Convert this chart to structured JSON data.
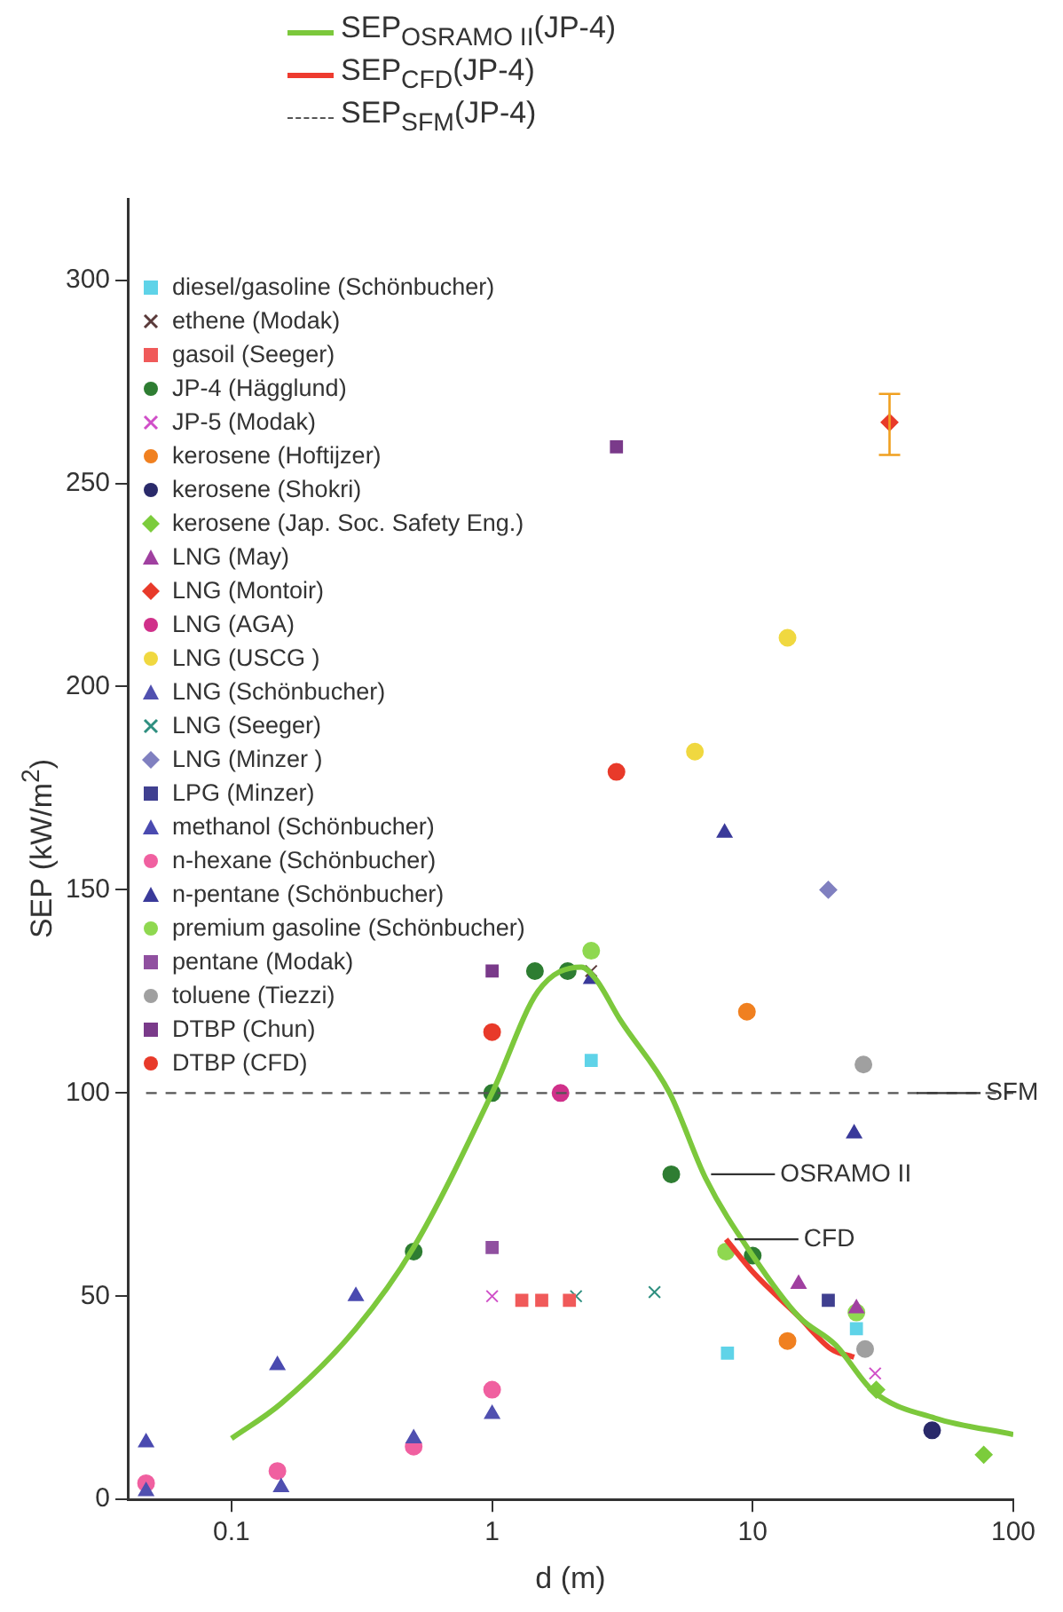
{
  "chart_data": {
    "type": "scatter",
    "xlabel": "d (m)",
    "ylabel": "SEP (kW/m$^{2}$)",
    "log": "x",
    "xlim": [
      0.04,
      100
    ],
    "xticks": [
      0.1,
      1,
      10,
      100
    ],
    "ylim": [
      0,
      320
    ],
    "yticks": [
      0,
      50,
      100,
      150,
      200,
      250,
      300
    ],
    "grid": false,
    "legend": "top left",
    "annotations": [
      {
        "text": "OSRAMO II",
        "x": 6.5,
        "y": 80
      },
      {
        "text": "CFD",
        "x": 8,
        "y": 64
      },
      {
        "text": "SFM",
        "x": 40,
        "y": 100
      }
    ],
    "series": [
      {
        "name": "SEP$_{OSRAMO II}$(JP-4)",
        "type": "line",
        "line_style": "solid",
        "color": "#7cc83c",
        "x": [
          0.1,
          0.155,
          0.3,
          0.5,
          1,
          1.5,
          2.2,
          2.5,
          3.1,
          4.8,
          6.6,
          10,
          15,
          20.8,
          29,
          50,
          100
        ],
        "values": [
          15,
          23.6,
          42,
          62,
          100,
          125,
          131,
          128,
          118,
          100,
          79,
          60,
          45,
          38,
          26.6,
          20,
          16
        ]
      },
      {
        "name": "SEP$_{CFD}$(JP-4)",
        "type": "line",
        "line_style": "solid",
        "color": "#ee3b2f",
        "x": [
          7.9,
          10,
          15,
          20,
          24.5
        ],
        "values": [
          64,
          56,
          45,
          37,
          35
        ]
      },
      {
        "name": "SEP$_{SFM}$(JP-4)",
        "type": "line",
        "line_style": "dashed",
        "color": "#555555",
        "x": [
          0.047,
          100
        ],
        "values": [
          100,
          100
        ]
      },
      {
        "name": "diesel/gasoline (Schönbucher)",
        "marker": "square",
        "color": "#5fd3e8",
        "x": [
          2.4,
          8,
          25
        ],
        "values": [
          108,
          36,
          42
        ]
      },
      {
        "name": "ethene (Modak)",
        "marker": "cross",
        "color": "#5a3a3a",
        "x": [
          2.4
        ],
        "values": [
          130
        ]
      },
      {
        "name": "gasoil (Seeger)",
        "marker": "square",
        "color": "#f05a5a",
        "x": [
          1.3,
          1.55,
          1.98
        ],
        "values": [
          49,
          49,
          49
        ]
      },
      {
        "name": "JP-4 (Hägglund)",
        "marker": "circle",
        "color": "#2e7d32",
        "x": [
          0.5,
          1,
          1.46,
          1.95,
          4.87,
          10
        ],
        "values": [
          61,
          100,
          130,
          130,
          80,
          60
        ]
      },
      {
        "name": "JP-5 (Modak)",
        "marker": "cross",
        "color": "#d04fc8",
        "x": [
          1,
          29.5
        ],
        "values": [
          50,
          31
        ]
      },
      {
        "name": "kerosene (Hoftijzer)",
        "marker": "circle",
        "color": "#f08020",
        "x": [
          9.5,
          13.6
        ],
        "values": [
          120,
          39
        ]
      },
      {
        "name": "kerosene (Shokri)",
        "marker": "circle",
        "color": "#2a2a6a",
        "x": [
          48.8
        ],
        "values": [
          17
        ]
      },
      {
        "name": "kerosene (Jap. Soc. Safety Eng.)",
        "marker": "diamond",
        "color": "#7ccc3c",
        "x": [
          29.8,
          77
        ],
        "values": [
          27,
          11
        ]
      },
      {
        "name": "LNG (May)",
        "marker": "triangle",
        "color": "#a040a0",
        "x": [
          15,
          25
        ],
        "values": [
          53,
          47
        ]
      },
      {
        "name": "LNG (Montoir)",
        "marker": "diamond",
        "color": "#e83a2a",
        "x": [
          33.5
        ],
        "values": [
          265
        ],
        "errors": [
          [
            257,
            272
          ]
        ]
      },
      {
        "name": "LNG (AGA)",
        "marker": "circle",
        "color": "#d0308a",
        "x": [
          1.83
        ],
        "values": [
          100
        ]
      },
      {
        "name": "LNG (USCG )",
        "marker": "circle",
        "color": "#f0d840",
        "x": [
          13.6,
          6
        ],
        "values": [
          212,
          184
        ]
      },
      {
        "name": "LNG (Schönbucher)",
        "marker": "triangle",
        "color": "#5050b0",
        "x": [
          0.047,
          0.155,
          0.5,
          1
        ],
        "values": [
          2,
          3,
          15,
          21
        ]
      },
      {
        "name": "LNG (Seeger)",
        "marker": "cross",
        "color": "#2f8f80",
        "x": [
          2.1,
          4.2
        ],
        "values": [
          50,
          51
        ]
      },
      {
        "name": "LNG (Minzer )",
        "marker": "diamond",
        "color": "#8080c0",
        "x": [
          19.5
        ],
        "values": [
          150
        ]
      },
      {
        "name": "LPG (Minzer)",
        "marker": "square",
        "color": "#404090",
        "x": [
          19.5
        ],
        "values": [
          49
        ]
      },
      {
        "name": "methanol (Schönbucher)",
        "marker": "triangle",
        "color": "#4a4ab0",
        "x": [
          0.047,
          0.15,
          0.3
        ],
        "values": [
          14,
          33,
          50
        ]
      },
      {
        "name": "n-hexane (Schönbucher)",
        "marker": "circle",
        "color": "#f060a0",
        "x": [
          0.047,
          0.15,
          0.5,
          1
        ],
        "values": [
          4,
          7,
          13,
          27
        ]
      },
      {
        "name": "n-pentane (Schönbucher)",
        "marker": "triangle",
        "color": "#3a3a9a",
        "x": [
          2.4,
          7.8,
          24.5
        ],
        "values": [
          128,
          164,
          90
        ]
      },
      {
        "name": "premium gasoline (Schönbucher)",
        "marker": "circle",
        "color": "#8fd850",
        "x": [
          2.4,
          7.9,
          25
        ],
        "values": [
          135,
          61,
          46
        ]
      },
      {
        "name": "pentane (Modak)",
        "marker": "square",
        "color": "#9050a0",
        "x": [
          1
        ],
        "values": [
          62
        ]
      },
      {
        "name": "toluene (Tiezzi)",
        "marker": "circle",
        "color": "#a0a0a0",
        "x": [
          26.6,
          27
        ],
        "values": [
          107,
          37
        ]
      },
      {
        "name": "DTBP (Chun)",
        "marker": "square",
        "color": "#7a3a8a",
        "x": [
          1,
          3
        ],
        "values": [
          130,
          259
        ]
      },
      {
        "name": "DTBP (CFD)",
        "marker": "circle",
        "color": "#e83a2a",
        "x": [
          1,
          3
        ],
        "values": [
          115,
          179
        ]
      }
    ]
  }
}
